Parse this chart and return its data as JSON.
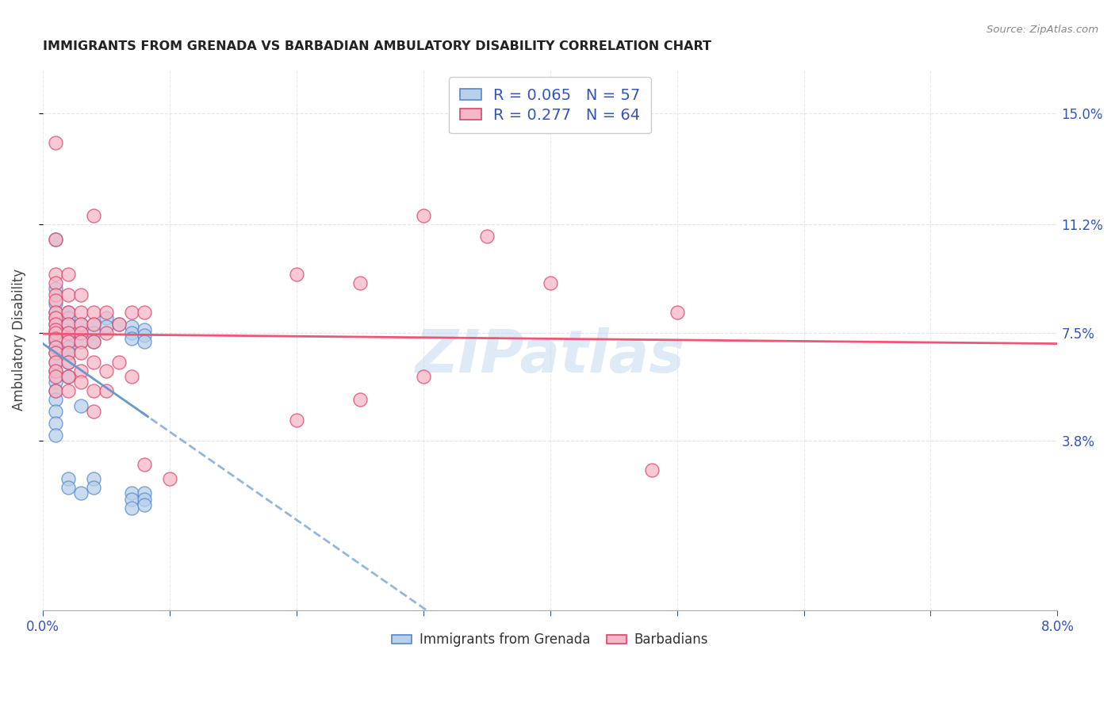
{
  "title": "IMMIGRANTS FROM GRENADA VS BARBADIAN AMBULATORY DISABILITY CORRELATION CHART",
  "source": "Source: ZipAtlas.com",
  "ylabel": "Ambulatory Disability",
  "ytick_values": [
    0.038,
    0.075,
    0.112,
    0.15
  ],
  "ytick_labels": [
    "3.8%",
    "7.5%",
    "11.2%",
    "15.0%"
  ],
  "xtick_values": [
    0.0,
    0.01,
    0.02,
    0.03,
    0.04,
    0.05,
    0.06,
    0.07,
    0.08
  ],
  "xtick_labels": [
    "0.0%",
    "",
    "",
    "",
    "",
    "",
    "",
    "",
    "8.0%"
  ],
  "legend_label1": "Immigrants from Grenada",
  "legend_label2": "Barbadians",
  "r1": "0.065",
  "n1": "57",
  "r2": "0.277",
  "n2": "64",
  "color_blue_fill": "#b8d0ea",
  "color_blue_edge": "#5588cc",
  "color_pink_fill": "#f5b8c8",
  "color_pink_edge": "#dd4466",
  "line_color_blue": "#6699cc",
  "line_color_pink": "#ee5577",
  "text_color_blue": "#3355bb",
  "xlim": [
    0.0,
    0.08
  ],
  "ylim": [
    -0.02,
    0.165
  ],
  "scatter_blue": [
    [
      0.001,
      0.107
    ],
    [
      0.001,
      0.09
    ],
    [
      0.001,
      0.085
    ],
    [
      0.001,
      0.082
    ],
    [
      0.001,
      0.08
    ],
    [
      0.001,
      0.078
    ],
    [
      0.001,
      0.075
    ],
    [
      0.001,
      0.074
    ],
    [
      0.001,
      0.073
    ],
    [
      0.001,
      0.072
    ],
    [
      0.001,
      0.07
    ],
    [
      0.001,
      0.068
    ],
    [
      0.001,
      0.065
    ],
    [
      0.001,
      0.062
    ],
    [
      0.001,
      0.058
    ],
    [
      0.001,
      0.055
    ],
    [
      0.001,
      0.052
    ],
    [
      0.001,
      0.048
    ],
    [
      0.001,
      0.044
    ],
    [
      0.001,
      0.04
    ],
    [
      0.002,
      0.082
    ],
    [
      0.002,
      0.08
    ],
    [
      0.002,
      0.078
    ],
    [
      0.002,
      0.075
    ],
    [
      0.002,
      0.073
    ],
    [
      0.002,
      0.072
    ],
    [
      0.002,
      0.07
    ],
    [
      0.002,
      0.068
    ],
    [
      0.002,
      0.065
    ],
    [
      0.002,
      0.06
    ],
    [
      0.002,
      0.025
    ],
    [
      0.002,
      0.022
    ],
    [
      0.003,
      0.078
    ],
    [
      0.003,
      0.075
    ],
    [
      0.003,
      0.072
    ],
    [
      0.003,
      0.05
    ],
    [
      0.003,
      0.02
    ],
    [
      0.004,
      0.078
    ],
    [
      0.004,
      0.075
    ],
    [
      0.004,
      0.072
    ],
    [
      0.004,
      0.025
    ],
    [
      0.004,
      0.022
    ],
    [
      0.005,
      0.08
    ],
    [
      0.005,
      0.077
    ],
    [
      0.006,
      0.078
    ],
    [
      0.007,
      0.077
    ],
    [
      0.007,
      0.075
    ],
    [
      0.007,
      0.073
    ],
    [
      0.007,
      0.02
    ],
    [
      0.007,
      0.018
    ],
    [
      0.007,
      0.015
    ],
    [
      0.008,
      0.076
    ],
    [
      0.008,
      0.074
    ],
    [
      0.008,
      0.072
    ],
    [
      0.008,
      0.02
    ],
    [
      0.008,
      0.018
    ],
    [
      0.008,
      0.016
    ]
  ],
  "scatter_pink": [
    [
      0.001,
      0.14
    ],
    [
      0.001,
      0.107
    ],
    [
      0.001,
      0.095
    ],
    [
      0.001,
      0.092
    ],
    [
      0.001,
      0.088
    ],
    [
      0.001,
      0.086
    ],
    [
      0.001,
      0.082
    ],
    [
      0.001,
      0.08
    ],
    [
      0.001,
      0.078
    ],
    [
      0.001,
      0.076
    ],
    [
      0.001,
      0.075
    ],
    [
      0.001,
      0.073
    ],
    [
      0.001,
      0.07
    ],
    [
      0.001,
      0.068
    ],
    [
      0.001,
      0.065
    ],
    [
      0.001,
      0.062
    ],
    [
      0.001,
      0.06
    ],
    [
      0.001,
      0.055
    ],
    [
      0.002,
      0.095
    ],
    [
      0.002,
      0.088
    ],
    [
      0.002,
      0.082
    ],
    [
      0.002,
      0.078
    ],
    [
      0.002,
      0.075
    ],
    [
      0.002,
      0.072
    ],
    [
      0.002,
      0.068
    ],
    [
      0.002,
      0.065
    ],
    [
      0.002,
      0.06
    ],
    [
      0.002,
      0.055
    ],
    [
      0.003,
      0.088
    ],
    [
      0.003,
      0.082
    ],
    [
      0.003,
      0.078
    ],
    [
      0.003,
      0.075
    ],
    [
      0.003,
      0.072
    ],
    [
      0.003,
      0.068
    ],
    [
      0.003,
      0.062
    ],
    [
      0.003,
      0.058
    ],
    [
      0.004,
      0.115
    ],
    [
      0.004,
      0.082
    ],
    [
      0.004,
      0.078
    ],
    [
      0.004,
      0.072
    ],
    [
      0.004,
      0.065
    ],
    [
      0.004,
      0.055
    ],
    [
      0.004,
      0.048
    ],
    [
      0.005,
      0.082
    ],
    [
      0.005,
      0.075
    ],
    [
      0.005,
      0.062
    ],
    [
      0.005,
      0.055
    ],
    [
      0.006,
      0.078
    ],
    [
      0.006,
      0.065
    ],
    [
      0.007,
      0.082
    ],
    [
      0.007,
      0.06
    ],
    [
      0.008,
      0.082
    ],
    [
      0.02,
      0.095
    ],
    [
      0.025,
      0.092
    ],
    [
      0.03,
      0.115
    ],
    [
      0.035,
      0.108
    ],
    [
      0.04,
      0.092
    ],
    [
      0.05,
      0.082
    ],
    [
      0.048,
      0.028
    ],
    [
      0.03,
      0.06
    ],
    [
      0.025,
      0.052
    ],
    [
      0.02,
      0.045
    ],
    [
      0.008,
      0.03
    ],
    [
      0.01,
      0.025
    ]
  ]
}
